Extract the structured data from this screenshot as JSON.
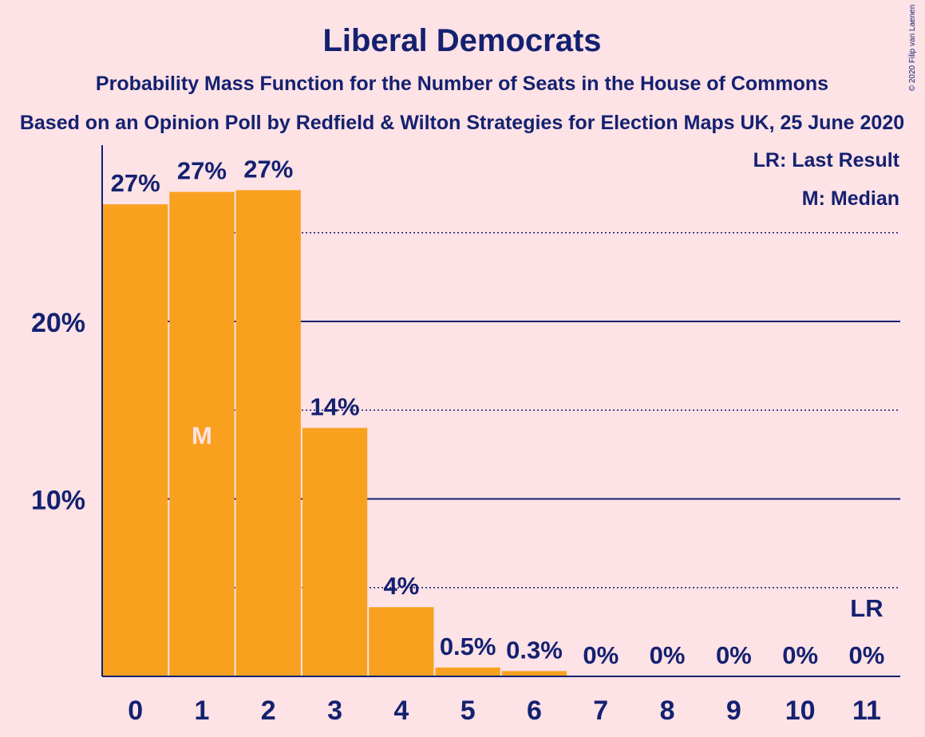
{
  "chart_data": {
    "type": "bar",
    "title": "Liberal Democrats",
    "subtitle": "Probability Mass Function for the Number of Seats in the House of Commons",
    "source_line": "Based on an Opinion Poll by Redfield & Wilton Strategies for Election Maps UK, 25 June 2020",
    "copyright": "© 2020 Filip van Laenen",
    "categories": [
      "0",
      "1",
      "2",
      "3",
      "4",
      "5",
      "6",
      "7",
      "8",
      "9",
      "10",
      "11"
    ],
    "values": [
      26.6,
      27.3,
      27.4,
      14.0,
      3.9,
      0.5,
      0.3,
      0,
      0,
      0,
      0,
      0
    ],
    "value_labels": [
      "27%",
      "27%",
      "27%",
      "14%",
      "4%",
      "0.5%",
      "0.3%",
      "0%",
      "0%",
      "0%",
      "0%",
      "0%"
    ],
    "y_ticks": [
      {
        "value": 10,
        "label": "10%"
      },
      {
        "value": 20,
        "label": "20%"
      }
    ],
    "dotted_gridlines": [
      5,
      15,
      25
    ],
    "ylim": [
      0,
      30
    ],
    "median_index": 1,
    "median_marker": "M",
    "last_result_index": 11,
    "last_result_marker": "LR",
    "legend": [
      "LR: Last Result",
      "M: Median"
    ],
    "legend_position": "top-right",
    "colors": {
      "bar": "#f9a11f",
      "axis": "#142170",
      "text": "#142170",
      "background": "#fde2e6",
      "median_text": "#fde2e6"
    }
  }
}
